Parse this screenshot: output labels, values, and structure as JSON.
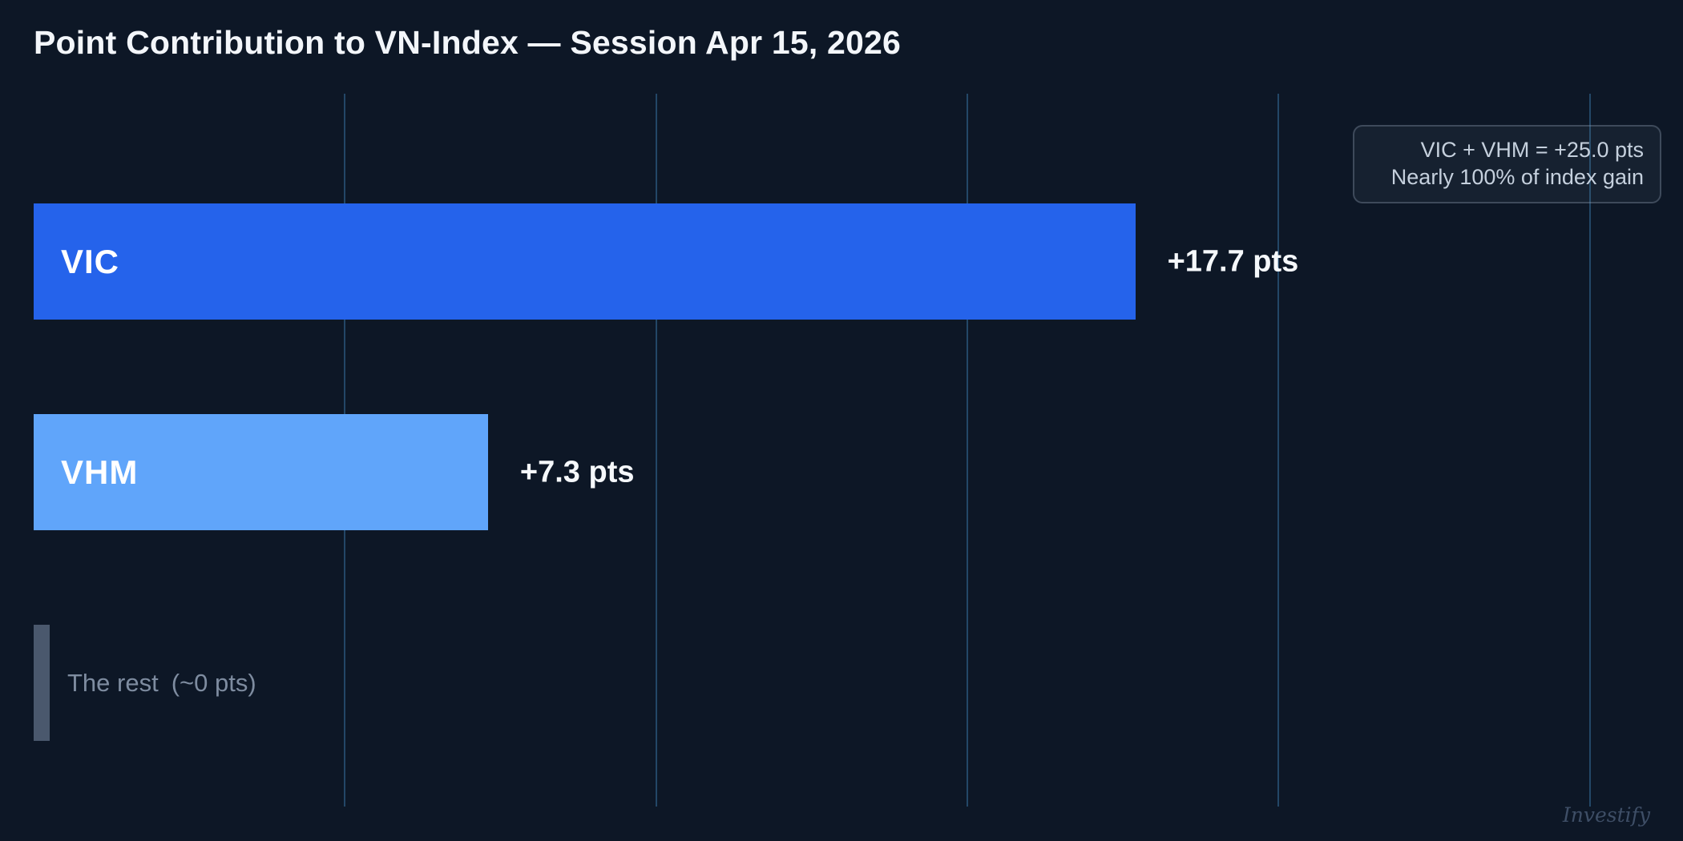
{
  "page": {
    "background": "#0d1726",
    "watermark": "Investify"
  },
  "annotation": {
    "line1": "VIC + VHM = +25.0 pts",
    "line2": "Nearly 100% of index gain"
  },
  "chart_data": {
    "type": "bar",
    "orientation": "horizontal",
    "title": "Point Contribution to VN-Index — Session Apr 15, 2026",
    "categories": [
      "VIC",
      "VHM",
      "The rest"
    ],
    "values": [
      17.7,
      7.3,
      0
    ],
    "xlabel": "",
    "ylabel": "",
    "xlim": [
      0,
      26.5
    ],
    "x_ticks": [
      5,
      10,
      15,
      20,
      25
    ],
    "x_tick_labels_visible": false,
    "grid": "vertical",
    "legend": "none",
    "bars": [
      {
        "category": "VIC",
        "value": 17.7,
        "value_label": "+17.7 pts",
        "color": "#2563eb",
        "label_placement": "inside"
      },
      {
        "category": "VHM",
        "value": 7.3,
        "value_label": "+7.3 pts",
        "color": "#60a5fa",
        "label_placement": "inside"
      },
      {
        "category": "The rest",
        "value": 0,
        "value_label": "(~0 pts)",
        "color": "#4a586d",
        "label_placement": "outside"
      }
    ],
    "annotations": [
      "VIC + VHM = +25.0 pts",
      "Nearly 100% of index gain"
    ],
    "colors": {
      "background": "#0d1726",
      "gridline": "#234767",
      "bar_vic": "#2563eb",
      "bar_vhm": "#60a5fa",
      "bar_rest": "#4a586d",
      "title_text": "#f3f6fa",
      "value_text": "#f5f8fb",
      "muted_text": "#7e8ca0",
      "annotation_text": "#c5d0dd"
    }
  }
}
